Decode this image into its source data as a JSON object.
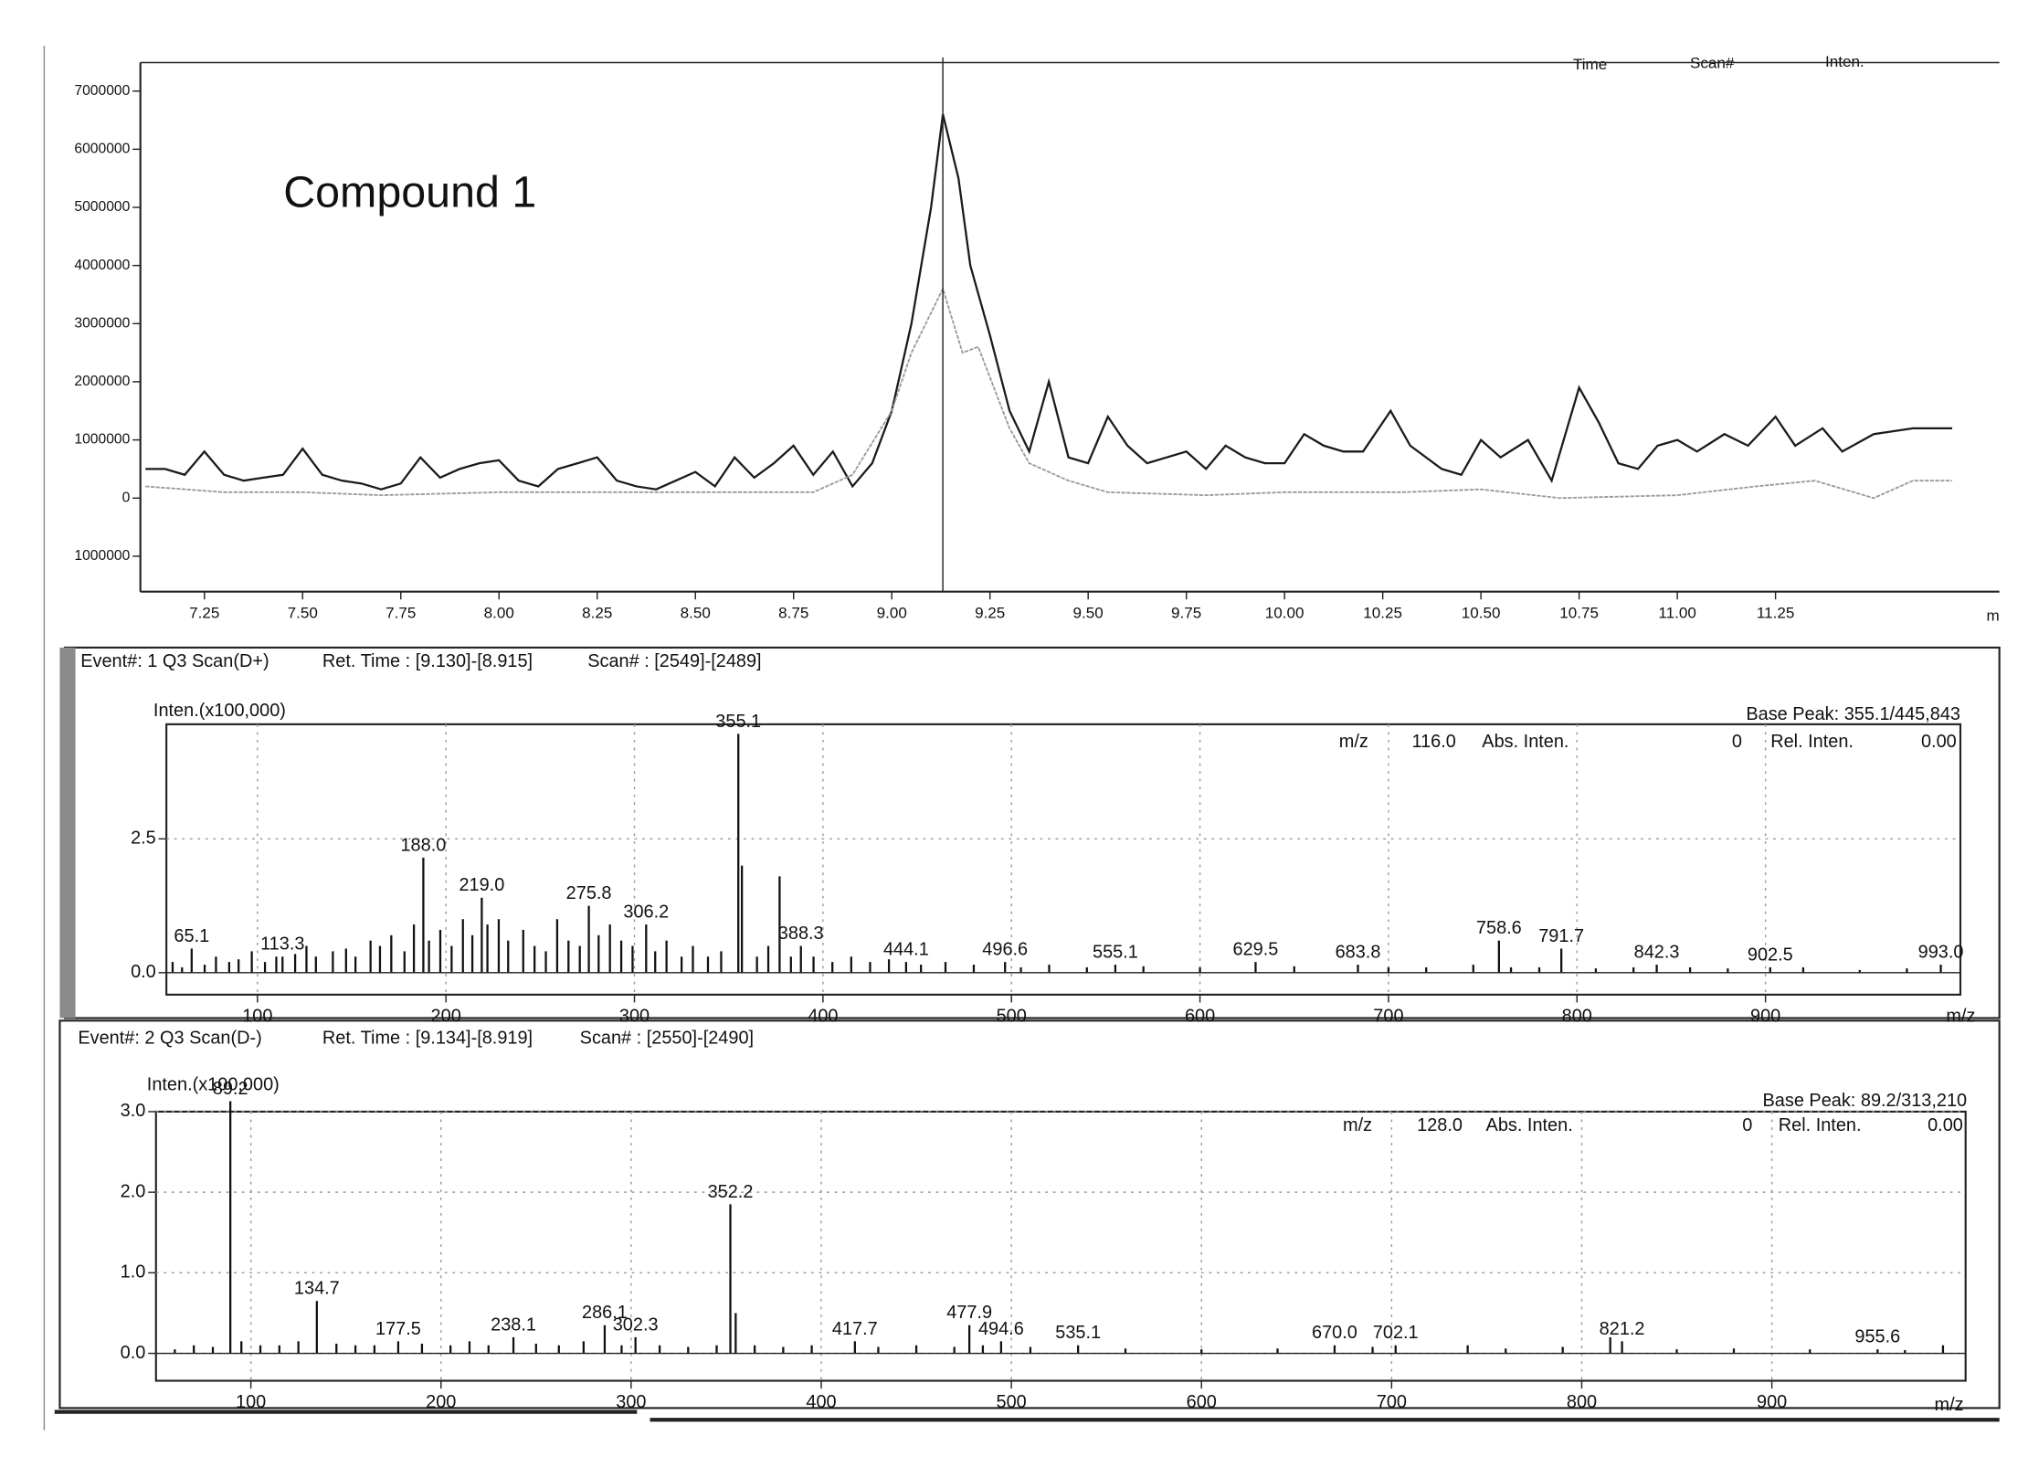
{
  "chart_data": [
    {
      "type": "line",
      "annotation": "Compound 1",
      "columns": [
        "Time",
        "Scan#",
        "Inten."
      ],
      "xlabel": "m",
      "xlim": [
        7.087,
        11.82
      ],
      "xticks": [
        {
          "value": 7.25,
          "label": "7.25"
        },
        {
          "value": 7.5,
          "label": "7.50"
        },
        {
          "value": 7.75,
          "label": "7.75"
        },
        {
          "value": 8,
          "label": "8.00"
        },
        {
          "value": 8.25,
          "label": "8.25"
        },
        {
          "value": 8.5,
          "label": "8.50"
        },
        {
          "value": 8.75,
          "label": "8.75"
        },
        {
          "value": 9,
          "label": "9.00"
        },
        {
          "value": 9.25,
          "label": "9.25"
        },
        {
          "value": 9.5,
          "label": "9.50"
        },
        {
          "value": 9.75,
          "label": "9.75"
        },
        {
          "value": 10,
          "label": "10.00"
        },
        {
          "value": 10.25,
          "label": "10.25"
        },
        {
          "value": 10.5,
          "label": "10.50"
        },
        {
          "value": 10.75,
          "label": "10.75"
        },
        {
          "value": 11,
          "label": "11.00"
        },
        {
          "value": 11.25,
          "label": "11.25"
        }
      ],
      "ylim": [
        -1610000,
        7490000
      ],
      "yticks": [
        {
          "value": -1000000,
          "label": "1000000"
        },
        0,
        1000000,
        2000000,
        3000000,
        4000000,
        5000000,
        6000000,
        7000000
      ],
      "grid": false,
      "cursor_x": 9.13,
      "series": [
        {
          "color": "#1a1a1a",
          "x": [
            7.1,
            7.15,
            7.2,
            7.25,
            7.3,
            7.35,
            7.4,
            7.45,
            7.5,
            7.55,
            7.6,
            7.65,
            7.7,
            7.75,
            7.8,
            7.85,
            7.9,
            7.95,
            8.0,
            8.05,
            8.1,
            8.15,
            8.2,
            8.25,
            8.3,
            8.35,
            8.4,
            8.45,
            8.5,
            8.55,
            8.6,
            8.65,
            8.7,
            8.75,
            8.8,
            8.85,
            8.9,
            8.95,
            9.0,
            9.05,
            9.1,
            9.13,
            9.17,
            9.2,
            9.25,
            9.3,
            9.35,
            9.4,
            9.45,
            9.5,
            9.55,
            9.6,
            9.65,
            9.7,
            9.75,
            9.8,
            9.85,
            9.9,
            9.95,
            10.0,
            10.05,
            10.1,
            10.15,
            10.2,
            10.27,
            10.32,
            10.4,
            10.45,
            10.5,
            10.55,
            10.62,
            10.68,
            10.75,
            10.8,
            10.85,
            10.9,
            10.95,
            11.0,
            11.05,
            11.12,
            11.18,
            11.25,
            11.3,
            11.37,
            11.42,
            11.5,
            11.6,
            11.7
          ],
          "values": [
            500000,
            500000,
            400000,
            800000,
            400000,
            300000,
            350000,
            400000,
            850000,
            400000,
            300000,
            250000,
            150000,
            250000,
            700000,
            350000,
            500000,
            600000,
            650000,
            300000,
            200000,
            500000,
            600000,
            700000,
            300000,
            200000,
            150000,
            300000,
            450000,
            200000,
            700000,
            350000,
            600000,
            900000,
            400000,
            800000,
            200000,
            600000,
            1500000,
            3000000,
            5000000,
            6600000,
            5500000,
            4000000,
            2800000,
            1500000,
            800000,
            2000000,
            700000,
            600000,
            1400000,
            900000,
            600000,
            700000,
            800000,
            500000,
            900000,
            700000,
            600000,
            600000,
            1100000,
            900000,
            800000,
            800000,
            1500000,
            900000,
            500000,
            400000,
            1000000,
            700000,
            1000000,
            300000,
            1900000,
            1300000,
            600000,
            500000,
            900000,
            1000000,
            800000,
            1100000,
            900000,
            1400000,
            900000,
            1200000,
            800000,
            1100000,
            1200000,
            1200000
          ]
        },
        {
          "color": "#9a9a9a",
          "x": [
            7.1,
            7.3,
            7.5,
            7.7,
            8.0,
            8.3,
            8.6,
            8.8,
            8.9,
            9.0,
            9.05,
            9.13,
            9.18,
            9.22,
            9.3,
            9.35,
            9.45,
            9.55,
            9.8,
            10.0,
            10.3,
            10.5,
            10.7,
            11.0,
            11.2,
            11.35,
            11.5,
            11.6,
            11.7
          ],
          "values": [
            200000,
            100000,
            100000,
            50000,
            100000,
            100000,
            100000,
            100000,
            400000,
            1500000,
            2500000,
            3600000,
            2500000,
            2600000,
            1200000,
            600000,
            300000,
            100000,
            50000,
            100000,
            100000,
            150000,
            0,
            50000,
            200000,
            300000,
            0,
            300000,
            300000
          ]
        }
      ]
    },
    {
      "type": "bar",
      "event": "Event#: 1 Q3 Scan(D+)",
      "ret_time": "Ret. Time : [9.130]-[8.915]",
      "scan": "Scan# : [2549]-[2489]",
      "ylabel": "Inten.(x100,000)",
      "base_peak": "Base Peak: 355.1/445,843",
      "xlabel": "m/z",
      "cursor_info": [
        "m/z",
        "116.0",
        "Abs. Inten.",
        "0",
        "Rel. Inten.",
        "0.00"
      ],
      "xlim": [
        51.7,
        1003.4
      ],
      "xticks": [
        100,
        200,
        300,
        400,
        500,
        600,
        700,
        800,
        900
      ],
      "ylim": [
        -0.41,
        4.64
      ],
      "yticks": [
        {
          "value": 0,
          "label": "0.0"
        },
        2.5
      ],
      "grid": true,
      "series": [
        {
          "color": "#111",
          "labeled": true,
          "x": [
            65.1,
            113.3,
            188.0,
            219.0,
            275.8,
            306.2,
            355.1,
            388.3,
            444.1,
            496.6,
            555.1,
            629.5,
            683.8,
            758.6,
            791.7,
            842.3,
            902.5,
            993.0
          ],
          "x_labels": [
            "65.1",
            "113.3",
            "188.0",
            "219.0",
            "275.8",
            "306.2",
            "355.1",
            "388.3",
            "444.1",
            "496.6",
            "555.1",
            "629.5",
            "683.8",
            "758.6",
            "791.7",
            "842.3",
            "902.5",
            "993.0"
          ],
          "values": [
            0.45,
            0.3,
            2.15,
            1.4,
            1.25,
            0.9,
            4.46,
            0.5,
            0.2,
            0.2,
            0.15,
            0.2,
            0.15,
            0.6,
            0.45,
            0.15,
            0.1,
            0.15
          ]
        },
        {
          "color": "#111",
          "labeled": false,
          "x": [
            55,
            60,
            72,
            78,
            85,
            90,
            97,
            104,
            110,
            120,
            126,
            131,
            140,
            147,
            152,
            160,
            165,
            171,
            178,
            183,
            191,
            197,
            203,
            209,
            214,
            222,
            228,
            233,
            241,
            247,
            253,
            259,
            265,
            271,
            281,
            287,
            293,
            299,
            311,
            317,
            325,
            331,
            339,
            346,
            357,
            365,
            371,
            377,
            383,
            395,
            405,
            415,
            425,
            435,
            452,
            465,
            480,
            505,
            520,
            540,
            570,
            600,
            650,
            700,
            720,
            745,
            765,
            780,
            810,
            830,
            860,
            880,
            920,
            950,
            975
          ],
          "values": [
            0.2,
            0.1,
            0.15,
            0.3,
            0.2,
            0.25,
            0.4,
            0.2,
            0.3,
            0.35,
            0.5,
            0.3,
            0.4,
            0.45,
            0.3,
            0.6,
            0.5,
            0.7,
            0.4,
            0.9,
            0.6,
            0.8,
            0.5,
            1.0,
            0.7,
            0.9,
            1.0,
            0.6,
            0.8,
            0.5,
            0.4,
            1.0,
            0.6,
            0.5,
            0.7,
            0.9,
            0.6,
            0.5,
            0.4,
            0.6,
            0.3,
            0.5,
            0.3,
            0.4,
            2.0,
            0.3,
            0.5,
            1.8,
            0.3,
            0.3,
            0.2,
            0.3,
            0.2,
            0.25,
            0.15,
            0.2,
            0.15,
            0.1,
            0.15,
            0.1,
            0.12,
            0.1,
            0.12,
            0.1,
            0.1,
            0.15,
            0.1,
            0.1,
            0.08,
            0.1,
            0.1,
            0.08,
            0.1,
            0.05,
            0.08
          ]
        }
      ]
    },
    {
      "type": "bar",
      "event": "Event#: 2 Q3 Scan(D-)",
      "ret_time": "Ret. Time : [9.134]-[8.919]",
      "scan": "Scan# : [2550]-[2490]",
      "ylabel": "Inten.(x100,000)",
      "base_peak": "Base Peak: 89.2/313,210",
      "xlabel": "m/z",
      "cursor_info": [
        "m/z",
        "128.0",
        "Abs. Inten.",
        "0",
        "Rel. Inten.",
        "0.00"
      ],
      "xlim": [
        50.1,
        1001.9
      ],
      "xticks": [
        100,
        200,
        300,
        400,
        500,
        600,
        700,
        800,
        900
      ],
      "ylim": [
        -0.34,
        3.0
      ],
      "yticks": [
        {
          "value": 0,
          "label": "0.0"
        },
        {
          "value": 1,
          "label": "1.0"
        },
        {
          "value": 2,
          "label": "2.0"
        },
        {
          "value": 3,
          "label": "3.0"
        }
      ],
      "grid": true,
      "series": [
        {
          "color": "#111",
          "labeled": true,
          "x": [
            89.2,
            134.7,
            177.5,
            238.1,
            286.1,
            302.3,
            352.2,
            417.7,
            477.9,
            494.6,
            535.1,
            670.0,
            702.1,
            821.2,
            955.6
          ],
          "x_labels": [
            "89.2",
            "134.7",
            "177.5",
            "238.1",
            "286.1",
            "302.3",
            "352.2",
            "417.7",
            "477.9",
            "494.6",
            "535.1",
            "670.0",
            "702.1",
            "821.2",
            "955.6"
          ],
          "values": [
            3.13,
            0.65,
            0.15,
            0.2,
            0.35,
            0.2,
            1.85,
            0.15,
            0.35,
            0.15,
            0.1,
            0.1,
            0.1,
            0.15,
            0.05
          ]
        },
        {
          "color": "#111",
          "labeled": false,
          "x": [
            60,
            70,
            80,
            95,
            105,
            115,
            125,
            145,
            155,
            165,
            190,
            205,
            215,
            225,
            250,
            262,
            275,
            295,
            315,
            330,
            345,
            355,
            365,
            380,
            395,
            430,
            450,
            470,
            485,
            510,
            560,
            600,
            640,
            690,
            740,
            760,
            790,
            815,
            850,
            880,
            920,
            970,
            990
          ],
          "values": [
            0.05,
            0.1,
            0.08,
            0.15,
            0.1,
            0.1,
            0.15,
            0.12,
            0.1,
            0.1,
            0.12,
            0.1,
            0.15,
            0.1,
            0.12,
            0.1,
            0.15,
            0.1,
            0.1,
            0.08,
            0.1,
            0.5,
            0.1,
            0.08,
            0.1,
            0.08,
            0.1,
            0.08,
            0.1,
            0.08,
            0.06,
            0.05,
            0.06,
            0.08,
            0.1,
            0.06,
            0.08,
            0.2,
            0.05,
            0.06,
            0.05,
            0.04,
            0.1
          ]
        }
      ]
    }
  ]
}
